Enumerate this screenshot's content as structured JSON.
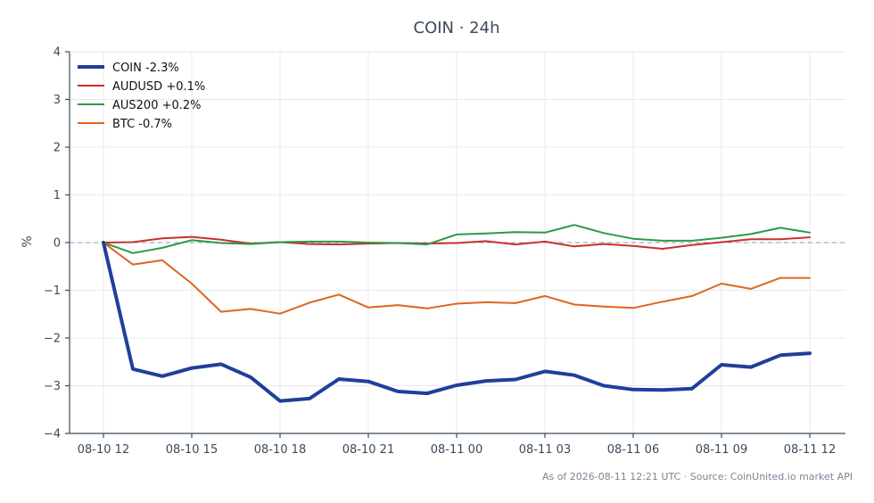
{
  "chart_data": {
    "type": "line",
    "title": "COIN · 24h",
    "xlabel": "",
    "ylabel": "%",
    "ylim": [
      -4,
      4
    ],
    "yticks": [
      -4,
      -3,
      -2,
      -1,
      0,
      1,
      2,
      3,
      4
    ],
    "ytick_labels": [
      "−4",
      "−3",
      "−2",
      "−1",
      "0",
      "1",
      "2",
      "3",
      "4"
    ],
    "x": [
      "08-10 12",
      "08-10 13",
      "08-10 14",
      "08-10 15",
      "08-10 16",
      "08-10 17",
      "08-10 18",
      "08-10 19",
      "08-10 20",
      "08-10 21",
      "08-10 22",
      "08-10 23",
      "08-11 00",
      "08-11 01",
      "08-11 02",
      "08-11 03",
      "08-11 04",
      "08-11 05",
      "08-11 06",
      "08-11 07",
      "08-11 08",
      "08-11 09",
      "08-11 10",
      "08-11 11",
      "08-11 12"
    ],
    "xticks": [
      "08-10 12",
      "08-10 15",
      "08-10 18",
      "08-10 21",
      "08-11 00",
      "08-11 03",
      "08-11 06",
      "08-11 09",
      "08-11 12"
    ],
    "zero_line": true,
    "grid": true,
    "legend": "top-left",
    "series": [
      {
        "name": "COIN -2.3%",
        "color": "#1f3f9a",
        "width": 4,
        "values": [
          0,
          -2.65,
          -2.8,
          -2.63,
          -2.55,
          -2.82,
          -3.32,
          -3.27,
          -2.86,
          -2.91,
          -3.12,
          -3.16,
          -2.99,
          -2.9,
          -2.87,
          -2.7,
          -2.78,
          -3.0,
          -3.08,
          -3.09,
          -3.06,
          -2.56,
          -2.61,
          -2.36,
          -2.32
        ]
      },
      {
        "name": "AUDUSD +0.1%",
        "color": "#c9302c",
        "width": 2,
        "values": [
          0,
          0.01,
          0.09,
          0.12,
          0.06,
          -0.02,
          0.01,
          -0.03,
          -0.04,
          -0.02,
          -0.01,
          -0.02,
          -0.01,
          0.03,
          -0.04,
          0.02,
          -0.08,
          -0.03,
          -0.07,
          -0.13,
          -0.05,
          0.01,
          0.07,
          0.07,
          0.11
        ]
      },
      {
        "name": "AUS200 +0.2%",
        "color": "#2b9a48",
        "width": 2,
        "values": [
          0,
          -0.22,
          -0.11,
          0.05,
          -0.01,
          -0.03,
          0.01,
          0.02,
          0.02,
          0.0,
          -0.01,
          -0.04,
          0.17,
          0.19,
          0.22,
          0.21,
          0.37,
          0.2,
          0.08,
          0.04,
          0.04,
          0.1,
          0.18,
          0.31,
          0.21
        ]
      },
      {
        "name": "BTC -0.7%",
        "color": "#de6520",
        "width": 2,
        "values": [
          0,
          -0.46,
          -0.37,
          -0.86,
          -1.45,
          -1.39,
          -1.49,
          -1.26,
          -1.09,
          -1.36,
          -1.31,
          -1.38,
          -1.28,
          -1.25,
          -1.27,
          -1.12,
          -1.3,
          -1.34,
          -1.37,
          -1.24,
          -1.12,
          -0.86,
          -0.97,
          -0.74,
          -0.74
        ]
      }
    ]
  },
  "footer": "As of 2026-08-11 12:21 UTC · Source: CoinUnited.io market API"
}
